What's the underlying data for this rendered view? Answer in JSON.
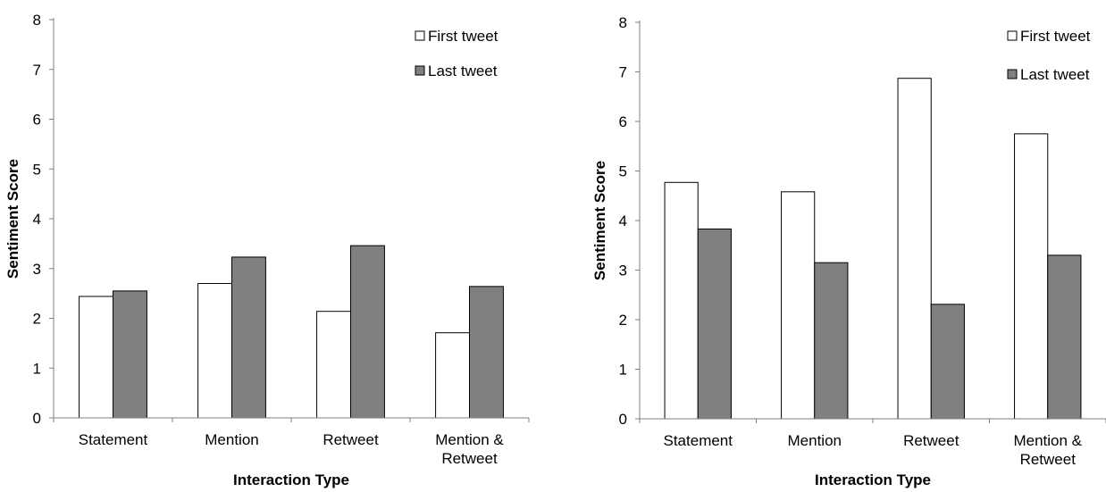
{
  "chart_data": [
    {
      "type": "bar",
      "title": "",
      "xlabel": "Interaction Type",
      "ylabel": "Sentiment Score",
      "categories": [
        [
          "Statement"
        ],
        [
          "Mention"
        ],
        [
          "Retweet"
        ],
        [
          "Mention &",
          "Retweet"
        ]
      ],
      "ylim": [
        0,
        8
      ],
      "yticks": [
        0,
        1,
        2,
        3,
        4,
        5,
        6,
        7,
        8
      ],
      "grid": false,
      "legend_position": "top-right",
      "series": [
        {
          "name": "First tweet",
          "values": [
            2.44,
            2.7,
            2.14,
            1.71
          ],
          "color": "#ffffff"
        },
        {
          "name": "Last tweet",
          "values": [
            2.55,
            3.23,
            3.46,
            2.64
          ],
          "color": "#808080"
        }
      ]
    },
    {
      "type": "bar",
      "title": "",
      "xlabel": "Interaction Type",
      "ylabel": "Sentiment Score",
      "categories": [
        [
          "Statement"
        ],
        [
          "Mention"
        ],
        [
          "Retweet"
        ],
        [
          "Mention &",
          "Retweet"
        ]
      ],
      "ylim": [
        0,
        8
      ],
      "yticks": [
        0,
        1,
        2,
        3,
        4,
        5,
        6,
        7,
        8
      ],
      "grid": false,
      "legend_position": "top-right",
      "series": [
        {
          "name": "First tweet",
          "values": [
            4.77,
            4.58,
            6.87,
            5.75
          ],
          "color": "#ffffff"
        },
        {
          "name": "Last tweet",
          "values": [
            3.83,
            3.15,
            2.31,
            3.3
          ],
          "color": "#808080"
        }
      ]
    }
  ]
}
